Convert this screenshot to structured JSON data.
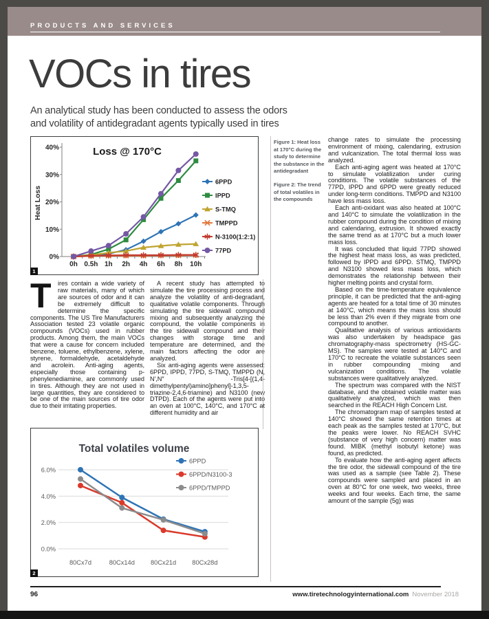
{
  "header": {
    "section_label": "PRODUCTS AND SERVICES"
  },
  "title": "VOCs in tires",
  "subtitle_lines": [
    "An analytical study has been conducted to assess the odors",
    "and volatility of antidegradant agents typically used in tires"
  ],
  "figures": {
    "fig1_badge": "1",
    "fig2_badge": "2",
    "fig1_caption": "Figure 1: Heat loss at 170°C during the study to determine the substance in the antidegradant",
    "fig2_caption": "Figure 2: The trend of total volatiles in the compounds"
  },
  "article": {
    "col1_dropcap": "T",
    "col1_text": "ires contain a wide variety of raw materials, many of which are sources of odor and it can be extremely difficult to determine the specific components. The US Tire Manufacturers Association tested 23 volatile organic compounds (VOCs) used in rubber products. Among them, the main VOCs that were a cause for concern included benzene, toluene, ethylbenzene, xylene, styrene, formaldehyde, acetaldehyde and acrolein. Anti-aging agents, especially those containing p-phenylenediamine, are commonly used in tires. Although they are not used in large quantities, they are considered to be one of the main sources of tire odor due to their irritating properties.",
    "col2_paragraphs": [
      "A recent study has attempted to simulate the tire processing process and analyze the volatility of anti-degradant, qualitative volatile components. Through simulating the tire sidewall compound mixing and subsequently analyzing the compound, the volatile components in the tire sidewall compound and their changes with storage time and temperature are determined, and the main factors affecting the odor are analyzed.",
      "Six anti-aging agents were assessed: 6PPD, IPPD, 77PD, S-TMQ, TMPPD (N, N′,N″ -Tris[4-[(1,4-dimethylpentyl)amino]phenyl]-1,3,5-triazine-2,4,6-triamine) and N3100 (new DTPD). Each of the agents were put into an oven at 100°C, 140°C, and 170°C at different humidity and air"
    ],
    "col3_paragraphs": [
      "change rates to simulate the processing environment of mixing, calendaring, extrusion and vulcanization. The total thermal loss was analyzed.",
      "Each anti-aging agent was heated at 170°C to simulate volatilization under curing conditions. The volatile substances of the 77PD, IPPD and 6PPD were greatly reduced under long-term conditions. TMPPD and N3100 have less mass loss.",
      "Each anti-oxidant was also heated at 100°C and 140°C to simulate the volatilization in the rubber compound during the condition of mixing and calendaring, extrusion. It showed exactly the same trend as at 170°C but a much lower mass loss.",
      "It was concluded that liquid 77PD showed the highest heat mass loss, as was predicted, followed by IPPD and 6PPD. STMQ, TMPPD and N3100 showed less mass loss, which demonstrates the relationship between their higher melting points and crystal form.",
      "Based on the time-temperature equivalence principle, it can be predicted that the anti-aging agents are heated for a total time of 30 minutes at 140°C, which means the mass loss should be less than 2% even if they migrate from one compound to another.",
      "Qualitative analysis of various antioxidants was also undertaken by headspace gas chromatography-mass spectrometry (HS-GC-MS). The samples were tested at 140°C and 170°C to recreate the volatile substances seen in rubber compounding mixing and vulcanization conditions. The volatile substances were qualitatively analyzed.",
      "The spectrum was compared with the NIST database, and the obtained volatile matter was qualitatively analyzed, which was then searched in the REACH High Concern List.",
      "The chromatogram map of samples tested at 140°C showed the same retention times at each peak as the samples tested at 170°C, but the peaks were lower. No REACH SVHC (substance of very high concern) matter was found. MIBK (methyl isobutyl ketone) was found, as predicted.",
      "To evaluate how the anti-aging agent affects the tire odor, the sidewall compound of the tire was used as a sample (see Table 2). These compounds were sampled and placed in an oven at 80°C for one week, two weeks, three weeks and four weeks. Each time, the same amount of the sample (5g) was"
    ]
  },
  "footer": {
    "page_number": "96",
    "website": "www.tiretechnologyinternational.com",
    "issue": "November 2018"
  },
  "chart_data": [
    {
      "type": "line",
      "title": "Loss @ 170°C",
      "ylabel": "Heat Loss",
      "categories": [
        "0h",
        "0.5h",
        "1h",
        "2h",
        "4h",
        "6h",
        "8h",
        "10h"
      ],
      "ytick_labels": [
        "0%",
        "10%",
        "20%",
        "30%",
        "40%"
      ],
      "ylim": [
        0,
        40
      ],
      "grid": false,
      "legend_position": "right",
      "axis_color": "#7f7f7f",
      "series": [
        {
          "name": "6PPD",
          "color": "#2E74B5",
          "marker": "diamond",
          "values": [
            0,
            0.4,
            1.0,
            2.5,
            5.6,
            9.1,
            12.0,
            15.2
          ]
        },
        {
          "name": "IPPD",
          "color": "#2E8B40",
          "marker": "square",
          "values": [
            0,
            0.7,
            2.7,
            6.1,
            13.5,
            21.3,
            27.8,
            35.0
          ]
        },
        {
          "name": "S-TMQ",
          "color": "#BFA431",
          "marker": "triangle",
          "values": [
            0,
            0.5,
            1.4,
            2.0,
            3.3,
            3.9,
            4.4,
            4.6
          ]
        },
        {
          "name": "TMPPD",
          "color": "#E2773B",
          "marker": "x",
          "values": [
            0,
            0.2,
            0.3,
            0.3,
            0.3,
            0.4,
            0.4,
            0.5
          ]
        },
        {
          "name": "N-3100(1:2:1)",
          "color": "#C03A2E",
          "marker": "asterisk",
          "values": [
            0,
            0.3,
            0.4,
            0.5,
            0.5,
            0.5,
            0.6,
            0.6
          ]
        },
        {
          "name": "77PD",
          "color": "#7458A4",
          "marker": "circle",
          "values": [
            0,
            2.0,
            4.0,
            8.3,
            14.5,
            23.0,
            31.5,
            37.5
          ]
        }
      ]
    },
    {
      "type": "line",
      "title": "Total volatiles volume",
      "ylabel": "",
      "categories": [
        "80Cx7d",
        "80Cx14d",
        "80Cx21d",
        "80Cx28d"
      ],
      "ytick_labels": [
        "0.0%",
        "2.0%",
        "4.0%",
        "6.0%"
      ],
      "ylim": [
        0,
        6
      ],
      "grid": true,
      "legend_position": "top-right",
      "grid_color": "#d9d9d9",
      "series": [
        {
          "name": "6PPD",
          "color": "#2E74B5",
          "marker": "circle",
          "values": [
            6.0,
            3.9,
            2.25,
            1.3
          ]
        },
        {
          "name": "6PPD/N3100-3",
          "color": "#D93A2B",
          "marker": "circle",
          "values": [
            4.8,
            3.5,
            1.4,
            0.9
          ]
        },
        {
          "name": "6PPD/TMPPD",
          "color": "#8C8C8C",
          "marker": "circle",
          "values": [
            5.3,
            3.1,
            2.2,
            1.15
          ]
        }
      ]
    }
  ]
}
